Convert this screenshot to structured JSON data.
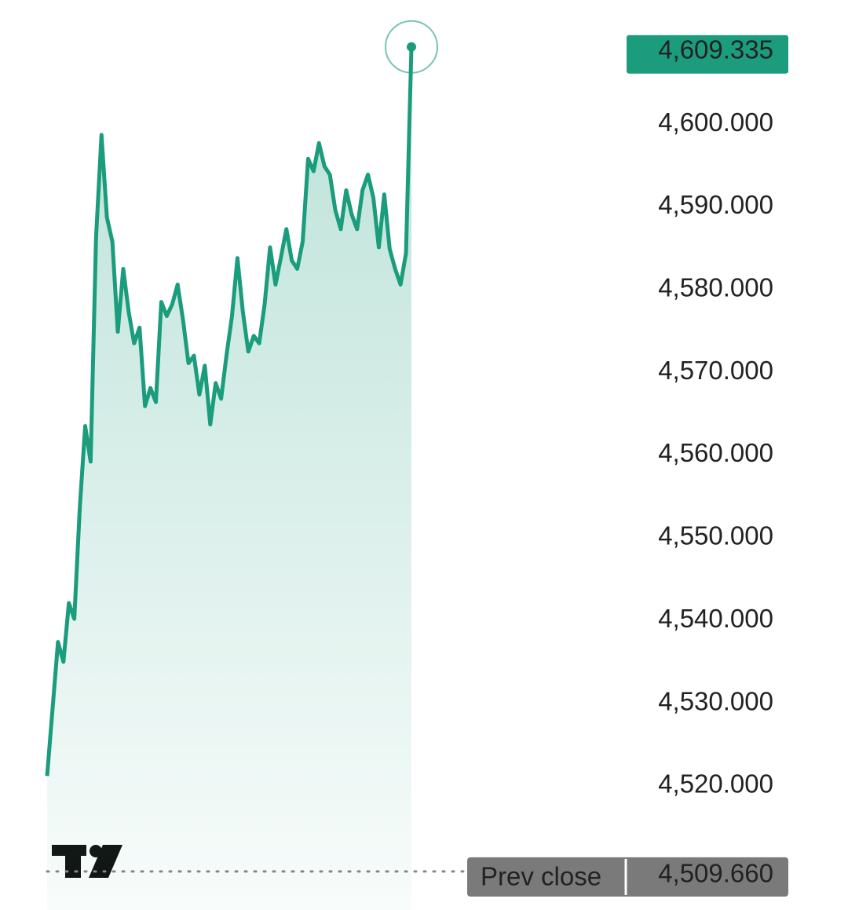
{
  "chart_data": {
    "type": "area",
    "categories": [
      null,
      null,
      null,
      null,
      null,
      null,
      null,
      null,
      null,
      null,
      null,
      null,
      null,
      null,
      null,
      null,
      null,
      null,
      null,
      null,
      null,
      null,
      null,
      null,
      null,
      null,
      null,
      null,
      null,
      null,
      null,
      null,
      null,
      null,
      null,
      null,
      null,
      null,
      null,
      null,
      null,
      null,
      null,
      null,
      null,
      null,
      null,
      null,
      null,
      null,
      null,
      null,
      null,
      null,
      null,
      null,
      null,
      null,
      null,
      null,
      null,
      null,
      null,
      null,
      null,
      null,
      null,
      null
    ],
    "series": [
      {
        "color": "#1b9c7c",
        "values": [
          4521.2,
          4529.3,
          4537.4,
          4535.0,
          4542.1,
          4540.2,
          4553.5,
          4563.5,
          4559.2,
          4586.3,
          4598.7,
          4588.7,
          4585.8,
          4574.9,
          4582.5,
          4577.3,
          4573.5,
          4575.4,
          4565.9,
          4568.1,
          4566.4,
          4578.5,
          4576.8,
          4578.2,
          4580.6,
          4576.3,
          4571.1,
          4572.0,
          4567.3,
          4570.8,
          4563.7,
          4568.7,
          4566.8,
          4572.1,
          4576.8,
          4583.8,
          4577.3,
          4572.5,
          4574.4,
          4573.5,
          4578.2,
          4585.1,
          4580.6,
          4583.9,
          4587.3,
          4583.5,
          4582.5,
          4585.8,
          4595.8,
          4594.3,
          4597.7,
          4594.9,
          4593.9,
          4589.6,
          4587.3,
          4592.0,
          4589.1,
          4587.3,
          4592.0,
          4593.9,
          4591.1,
          4585.1,
          4591.5,
          4584.9,
          4582.5,
          4580.6,
          4584.4,
          4609.335
        ]
      }
    ],
    "ylim": [
      4505,
      4615
    ],
    "yticks": [
      {
        "value": 4520,
        "label": "4,520.000"
      },
      {
        "value": 4530,
        "label": "4,530.000"
      },
      {
        "value": 4540,
        "label": "4,540.000"
      },
      {
        "value": 4550,
        "label": "4,550.000"
      },
      {
        "value": 4560,
        "label": "4,560.000"
      },
      {
        "value": 4570,
        "label": "4,570.000"
      },
      {
        "value": 4580,
        "label": "4,580.000"
      },
      {
        "value": 4590,
        "label": "4,590.000"
      },
      {
        "value": 4600,
        "label": "4,600.000"
      }
    ],
    "last_price": {
      "value": 4609.335,
      "label": "4,609.335"
    },
    "prev_close": {
      "name": "Prev close",
      "value": 4509.66,
      "label": "4,509.660",
      "color": "#7a7a7a"
    }
  }
}
